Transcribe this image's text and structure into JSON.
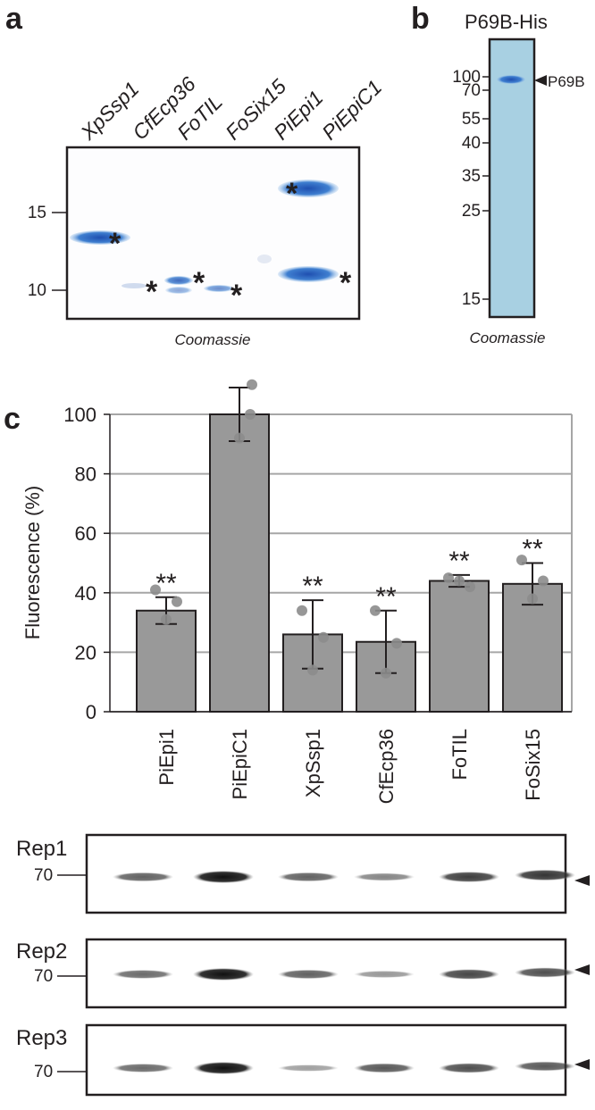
{
  "panel_a": {
    "label": "a",
    "lanes": [
      "XpSsp1",
      "CfEcp36",
      "FoTIL",
      "FoSix15",
      "PiEpi1",
      "PiEpiC1"
    ],
    "markers": [
      15,
      10
    ],
    "asterisks": [
      "*",
      "*",
      "*",
      "*",
      "*",
      "*"
    ],
    "caption": "Coomassie"
  },
  "panel_b": {
    "label": "b",
    "title": "P69B-His",
    "markers": [
      100,
      70,
      55,
      40,
      35,
      25,
      15
    ],
    "band_label": "P69B",
    "caption": "Coomassie"
  },
  "panel_c": {
    "label": "c",
    "chart_data": {
      "type": "bar",
      "y_label": "Fluorescence (%)",
      "categories": [
        "PiEpi1",
        "PiEpiC1",
        "XpSsp1",
        "CfEcp36",
        "FoTIL",
        "FoSix15"
      ],
      "values": [
        34,
        100,
        26,
        23.5,
        44,
        43
      ],
      "errors": [
        4.5,
        9,
        11.5,
        10.5,
        2,
        7
      ],
      "points": [
        [
          41,
          37,
          31
        ],
        [
          110,
          100,
          92
        ],
        [
          34,
          25,
          14
        ],
        [
          34,
          23,
          13
        ],
        [
          45,
          42,
          44
        ],
        [
          51,
          44,
          38
        ]
      ],
      "annotations": [
        "**",
        null,
        "**",
        "**",
        "**",
        "**"
      ],
      "color": "#999999",
      "point_color": "#8c8c8c",
      "ylim": [
        0,
        100
      ],
      "yticks": [
        0,
        20,
        40,
        60,
        80,
        100
      ],
      "grid": true
    },
    "blots": [
      {
        "label": "Rep1",
        "marker": 70
      },
      {
        "label": "Rep2",
        "marker": 70
      },
      {
        "label": "Rep3",
        "marker": 70
      }
    ]
  }
}
